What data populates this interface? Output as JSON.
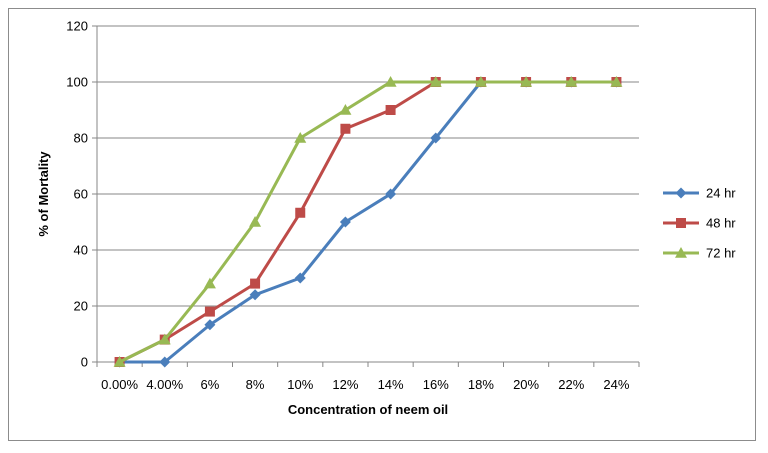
{
  "chart_data": {
    "type": "line",
    "title": "",
    "xlabel": "Concentration of neem oil",
    "ylabel": "% of Mortality",
    "categories": [
      "0.00%",
      "4.00%",
      "6%",
      "8%",
      "10%",
      "12%",
      "14%",
      "16%",
      "18%",
      "20%",
      "22%",
      "24%"
    ],
    "ylim": [
      0,
      120
    ],
    "yticks": [
      0,
      20,
      40,
      60,
      80,
      100,
      120
    ],
    "grid": true,
    "legend_position": "right",
    "series": [
      {
        "name": "24 hr",
        "color": "#4a7ebb",
        "marker": "diamond",
        "values": [
          0,
          0,
          13.3,
          24,
          30,
          50,
          60,
          80,
          100,
          100,
          100,
          100
        ]
      },
      {
        "name": "48 hr",
        "color": "#be4b48",
        "marker": "square",
        "values": [
          0,
          8,
          18,
          28,
          53.3,
          83.3,
          90,
          100,
          100,
          100,
          100,
          100
        ]
      },
      {
        "name": "72 hr",
        "color": "#98b954",
        "marker": "triangle",
        "values": [
          0,
          8,
          28,
          50,
          80,
          90,
          100,
          100,
          100,
          100,
          100,
          100
        ]
      }
    ]
  }
}
